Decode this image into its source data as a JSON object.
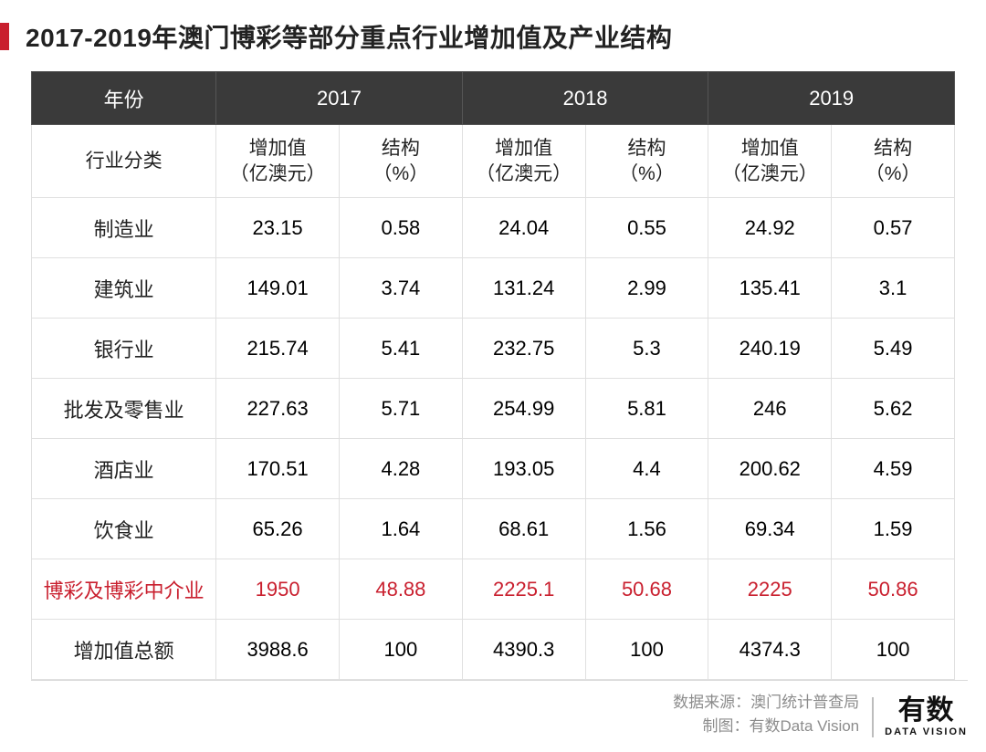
{
  "title": "2017-2019年澳门博彩等部分重点行业增加值及产业结构",
  "table": {
    "header": {
      "year_label": "年份",
      "years": [
        "2017",
        "2018",
        "2019"
      ],
      "category_label": "行业分类",
      "value_label": "增加值\n（亿澳元）",
      "share_label": "结构\n（%）"
    },
    "rows": [
      {
        "category": "制造业",
        "v17": "23.15",
        "s17": "0.58",
        "v18": "24.04",
        "s18": "0.55",
        "v19": "24.92",
        "s19": "0.57",
        "highlight": false
      },
      {
        "category": "建筑业",
        "v17": "149.01",
        "s17": "3.74",
        "v18": "131.24",
        "s18": "2.99",
        "v19": "135.41",
        "s19": "3.1",
        "highlight": false
      },
      {
        "category": "银行业",
        "v17": "215.74",
        "s17": "5.41",
        "v18": "232.75",
        "s18": "5.3",
        "v19": "240.19",
        "s19": "5.49",
        "highlight": false
      },
      {
        "category": "批发及零售业",
        "v17": "227.63",
        "s17": "5.71",
        "v18": "254.99",
        "s18": "5.81",
        "v19": "246",
        "s19": "5.62",
        "highlight": false
      },
      {
        "category": "酒店业",
        "v17": "170.51",
        "s17": "4.28",
        "v18": "193.05",
        "s18": "4.4",
        "v19": "200.62",
        "s19": "4.59",
        "highlight": false
      },
      {
        "category": "饮食业",
        "v17": "65.26",
        "s17": "1.64",
        "v18": "68.61",
        "s18": "1.56",
        "v19": "69.34",
        "s19": "1.59",
        "highlight": false
      },
      {
        "category": "博彩及博彩中介业",
        "v17": "1950",
        "s17": "48.88",
        "v18": "2225.1",
        "s18": "50.68",
        "v19": "2225",
        "s19": "50.86",
        "highlight": true
      },
      {
        "category": "增加值总额",
        "v17": "3988.6",
        "s17": "100",
        "v18": "4390.3",
        "s18": "100",
        "v19": "4374.3",
        "s19": "100",
        "highlight": false
      }
    ]
  },
  "footer": {
    "source_label": "数据来源：澳门统计普查局",
    "credit_label": "制图：有数Data Vision",
    "logo_main": "有数",
    "logo_sub": "DATA VISION"
  },
  "colors": {
    "accent_red": "#c91f2e",
    "header_bg": "#3a3a3a",
    "header_fg": "#ffffff",
    "border": "#e0e0e0",
    "text": "#222222",
    "muted": "#8c8c8c"
  }
}
